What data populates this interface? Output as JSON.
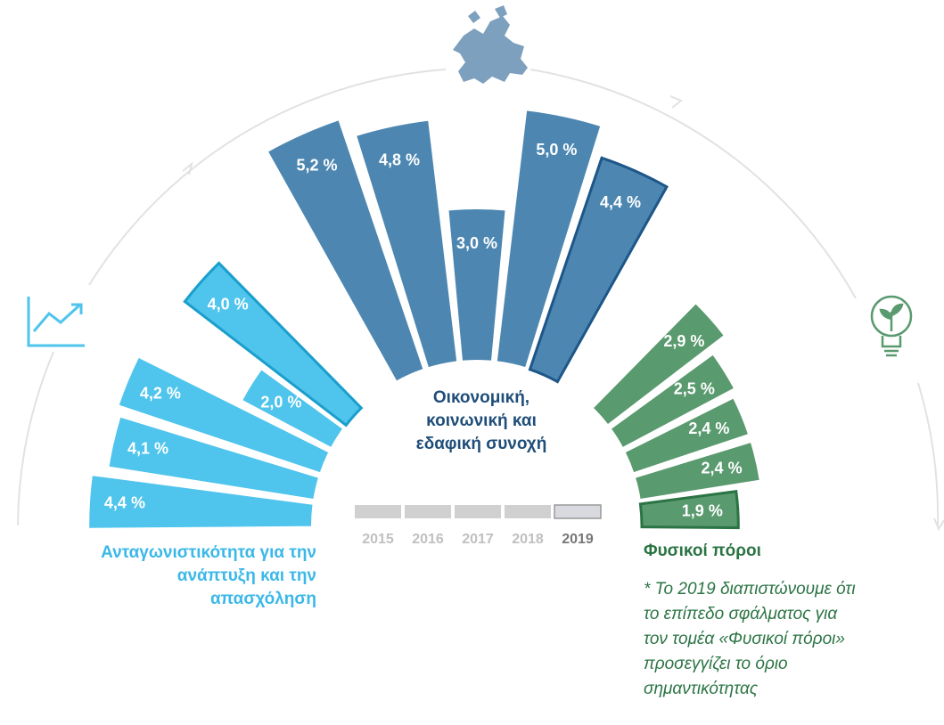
{
  "chart_data": {
    "type": "radial-bar",
    "categories": [
      "2015",
      "2016",
      "2017",
      "2018",
      "2019"
    ],
    "series": [
      {
        "name": "Ανταγωνιστικότητα για την ανάπτυξη και την απασχόληση",
        "color": "#4fc4ec",
        "outline": "#1a9fcc",
        "values": [
          4.4,
          4.1,
          4.2,
          2.0,
          4.0
        ],
        "value_labels": [
          "4,4 %",
          "4,1 %",
          "4,2 %",
          "2,0 %",
          "4,0 %"
        ]
      },
      {
        "name": "Οικονομική, κοινωνική και εδαφική συνοχή",
        "color": "#4d87b1",
        "outline": "#1d5688",
        "values": [
          5.2,
          4.8,
          3.0,
          5.0,
          4.4
        ],
        "value_labels": [
          "5,2 %",
          "4,8 %",
          "3,0 %",
          "5,0 %",
          "4,4 %"
        ]
      },
      {
        "name": "Φυσικοί πόροι",
        "color": "#5a9a6f",
        "outline": "#2b7444",
        "values": [
          2.9,
          2.5,
          2.4,
          2.4,
          1.9
        ],
        "value_labels": [
          "2,9 %",
          "2,5 %",
          "2,4 %",
          "2,4 %",
          "1,9 %"
        ]
      }
    ],
    "footnote": "* Το 2019 διαπιστώνουμε ότι το επίπεδο σφάλματος για τον τομέα «Φυσικοί πόροι» προσεγγίζει το όριο σημαντικότητας"
  }
}
